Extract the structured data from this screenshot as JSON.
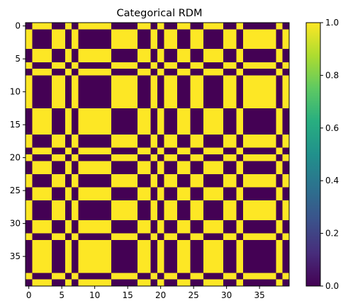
{
  "chart_data": {
    "type": "heatmap",
    "title": "Categorical RDM",
    "xlabel": "",
    "ylabel": "",
    "size": 40,
    "category_sequence": [
      1,
      0,
      0,
      0,
      1,
      1,
      0,
      1,
      0,
      0,
      0,
      0,
      0,
      1,
      1,
      1,
      1,
      0,
      0,
      1,
      0,
      1,
      1,
      0,
      0,
      1,
      1,
      0,
      0,
      0,
      1,
      1,
      0,
      1,
      1,
      1,
      1,
      1,
      0,
      1
    ],
    "value_rule": "cell[i][j] = 0 if category[i] == category[j] else 1",
    "x_ticks": [
      0,
      5,
      10,
      15,
      20,
      25,
      30,
      35
    ],
    "x_tick_labels": [
      "0",
      "5",
      "10",
      "15",
      "20",
      "25",
      "30",
      "35"
    ],
    "y_ticks": [
      0,
      5,
      10,
      15,
      20,
      25,
      30,
      35
    ],
    "y_tick_labels": [
      "0",
      "5",
      "10",
      "15",
      "20",
      "25",
      "30",
      "35"
    ],
    "colorbar": {
      "colormap": "viridis",
      "ticks": [
        0.0,
        0.2,
        0.4,
        0.6,
        0.8,
        1.0
      ],
      "tick_labels": [
        "0.0",
        "0.2",
        "0.4",
        "0.6",
        "0.8",
        "1.0"
      ],
      "range": [
        0.0,
        1.0
      ]
    },
    "colors": {
      "low": "#440154",
      "high": "#fde725"
    }
  }
}
